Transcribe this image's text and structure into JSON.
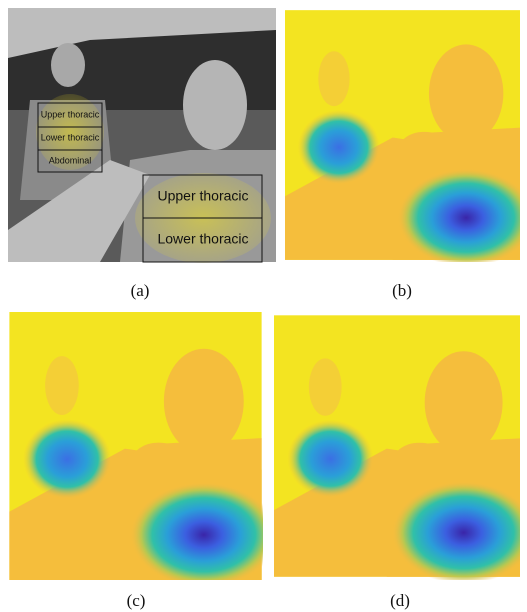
{
  "panels": [
    {
      "caption": "(a)",
      "regions": [
        "Upper thoracic",
        "Lower thoracic",
        "Abdominal",
        "Upper thoracic",
        "Lower thoracic"
      ]
    },
    {
      "caption": "(b)"
    },
    {
      "caption": "(c)"
    },
    {
      "caption": "(d)"
    }
  ]
}
